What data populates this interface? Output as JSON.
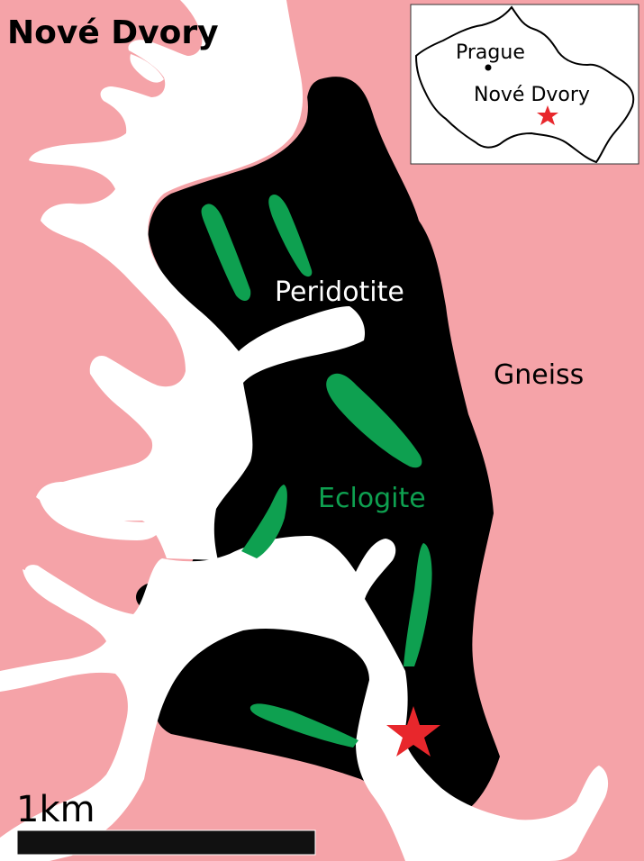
{
  "map": {
    "title": "Nové Dvory",
    "labels": {
      "peridotite": "Peridotite",
      "gneiss": "Gneiss",
      "eclogite": "Eclogite"
    },
    "scale_bar": {
      "label": "1km"
    },
    "inset": {
      "city": "Prague",
      "site": "Nové Dvory"
    },
    "colors": {
      "gneiss": "#f5a3a8",
      "peridotite": "#000000",
      "eclogite": "#0ea050",
      "unmapped": "#ffffff",
      "site_marker": "#e8272c"
    },
    "icons": {
      "site": "star-icon",
      "city": "dot-icon"
    }
  }
}
